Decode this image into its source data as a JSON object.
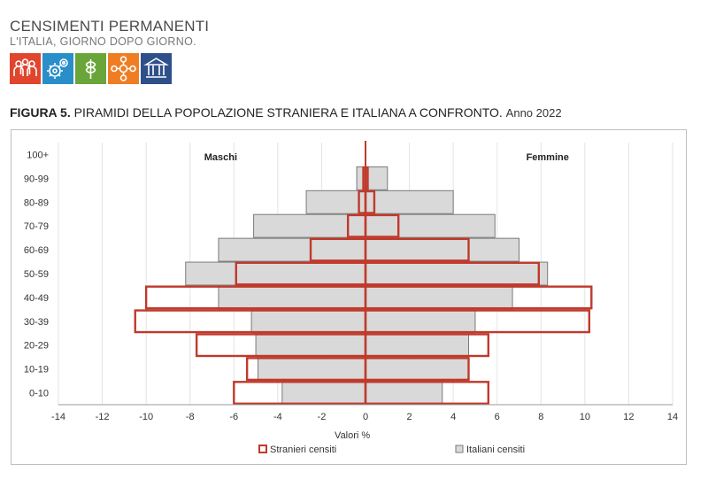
{
  "header": {
    "brand_title": "CENSIMENTI PERMANENTI",
    "brand_subtitle": "L'ITALIA, GIORNO DOPO GIORNO.",
    "logo_tiles": [
      {
        "icon": "people-icon",
        "color": "#e0452d"
      },
      {
        "icon": "gears-icon",
        "color": "#2a8fc9"
      },
      {
        "icon": "wheat-icon",
        "color": "#6aa53a"
      },
      {
        "icon": "network-icon",
        "color": "#ef7d23"
      },
      {
        "icon": "institution-icon",
        "color": "#2e4f8a"
      }
    ]
  },
  "figure": {
    "number": "FIGURA 5.",
    "title": "PIRAMIDI DELLA POPOLAZIONE STRANIERA E ITALIANA A CONFRONTO.",
    "year": "Anno 2022"
  },
  "chart_data": {
    "type": "bar",
    "orientation": "horizontal",
    "categories": [
      "100+",
      "90-99",
      "80-89",
      "70-79",
      "60-69",
      "50-59",
      "40-49",
      "30-39",
      "20-29",
      "10-19",
      "0-10"
    ],
    "left_label": "Maschi",
    "right_label": "Femmine",
    "xlabel": "Valori %",
    "xlim": [
      -14,
      14
    ],
    "xticks": [
      -14,
      -12,
      -10,
      -8,
      -6,
      -4,
      -2,
      0,
      2,
      4,
      6,
      8,
      10,
      12,
      14
    ],
    "grid": true,
    "legend_position": "bottom",
    "series": [
      {
        "name": "Stranieri censiti",
        "color": "#c0392b",
        "style": "outline",
        "males": [
          0.0,
          0.1,
          0.3,
          0.8,
          2.5,
          5.9,
          10.0,
          10.5,
          7.7,
          5.4,
          6.0
        ],
        "females": [
          0.0,
          0.1,
          0.4,
          1.5,
          4.7,
          7.9,
          10.3,
          10.2,
          5.6,
          4.7,
          5.6
        ]
      },
      {
        "name": "Italiani censiti",
        "color": "#d9d9d9",
        "style": "filled",
        "males": [
          0.0,
          0.4,
          2.7,
          5.1,
          6.7,
          8.2,
          6.7,
          5.2,
          5.0,
          4.9,
          3.8
        ],
        "females": [
          0.0,
          1.0,
          4.0,
          5.9,
          7.0,
          8.3,
          6.7,
          5.0,
          4.7,
          4.7,
          3.5
        ]
      }
    ]
  }
}
